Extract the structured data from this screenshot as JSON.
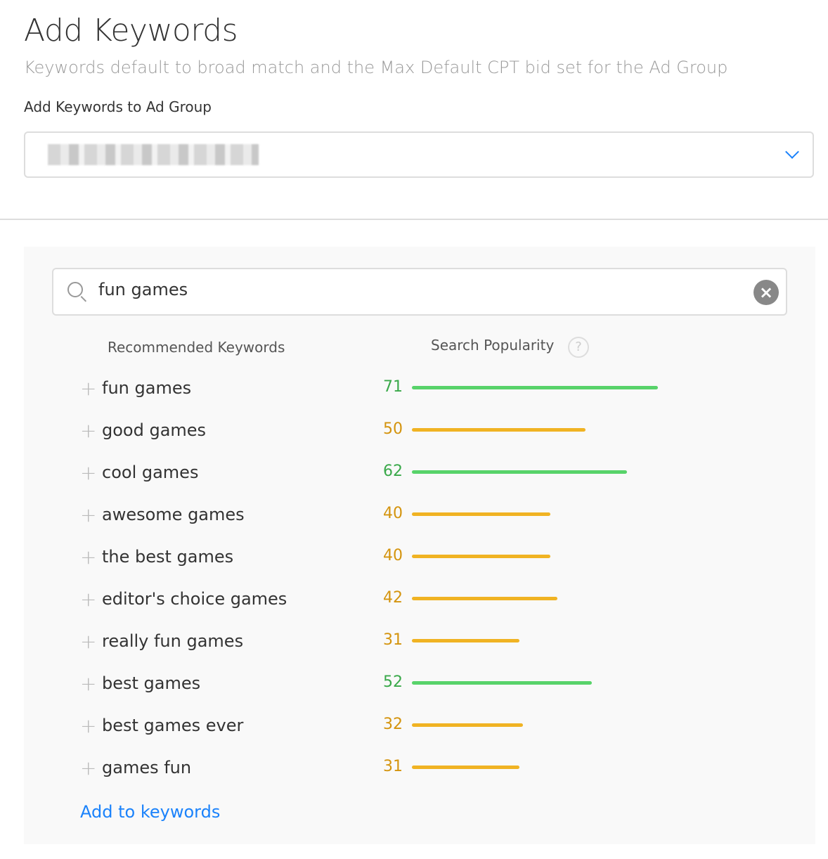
{
  "header": {
    "title": "Add Keywords",
    "subtitle": "Keywords default to broad match and the Max Default CPT bid set for the Ad Group"
  },
  "ad_group": {
    "label": "Add Keywords to Ad Group",
    "selected_value_redacted": true
  },
  "search": {
    "value": "fun games",
    "clear_icon": "close-circle-icon",
    "search_icon": "magnifier-icon"
  },
  "columns": {
    "keywords": "Recommended Keywords",
    "popularity": "Search Popularity",
    "help": "?"
  },
  "colors": {
    "high_text": "#3aa94a",
    "high_bar": "#58d36a",
    "mid_text": "#d4940e",
    "mid_bar": "#f0b323",
    "link": "#1a82fb"
  },
  "keywords": [
    {
      "text": "fun games",
      "popularity": 71,
      "level": "high"
    },
    {
      "text": "good games",
      "popularity": 50,
      "level": "mid"
    },
    {
      "text": "cool games",
      "popularity": 62,
      "level": "high"
    },
    {
      "text": "awesome games",
      "popularity": 40,
      "level": "mid"
    },
    {
      "text": "the best games",
      "popularity": 40,
      "level": "mid"
    },
    {
      "text": "editor's choice games",
      "popularity": 42,
      "level": "mid"
    },
    {
      "text": "really fun games",
      "popularity": 31,
      "level": "mid"
    },
    {
      "text": "best games",
      "popularity": 52,
      "level": "high"
    },
    {
      "text": "best games ever",
      "popularity": 32,
      "level": "mid"
    },
    {
      "text": "games fun",
      "popularity": 31,
      "level": "mid"
    }
  ],
  "add_link": "Add to keywords"
}
